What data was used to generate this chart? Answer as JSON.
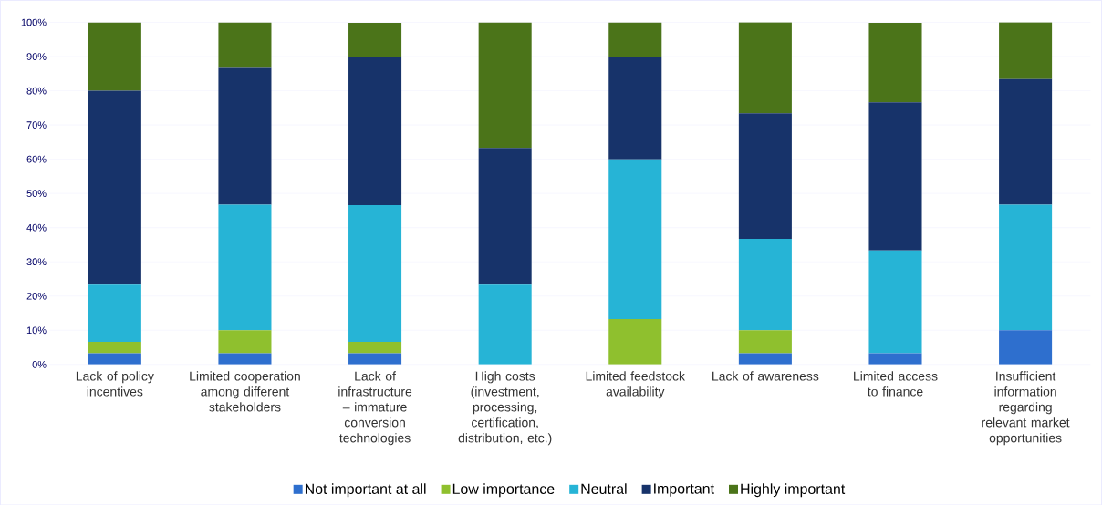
{
  "chart_data": {
    "type": "bar",
    "stacked": true,
    "categories": [
      "Lack of policy incentives",
      "Limited cooperation among different stakeholders",
      "Lack of infrastructure – immature conversion technologies",
      "High costs (investment, processing, certification, distribution, etc.)",
      "Limited feedstock availability",
      "Lack of awareness",
      "Limited access to finance",
      "Insufficient information regarding relevant market opportunities"
    ],
    "series": [
      {
        "name": "Not important at all",
        "color": "#2e6fce",
        "values": [
          3.3,
          3.3,
          3.3,
          0,
          0,
          3.3,
          3.3,
          10
        ]
      },
      {
        "name": "Low importance",
        "color": "#8fc02e",
        "values": [
          3.3,
          6.7,
          3.3,
          0,
          13.3,
          6.7,
          0,
          0
        ]
      },
      {
        "name": "Neutral",
        "color": "#26b4d6",
        "values": [
          16.7,
          36.7,
          40,
          23.3,
          46.7,
          26.7,
          30,
          36.7
        ]
      },
      {
        "name": "Important",
        "color": "#17336a",
        "values": [
          56.7,
          40,
          43.3,
          40,
          30,
          36.7,
          43.3,
          36.7
        ]
      },
      {
        "name": "Highly important",
        "color": "#4b7419",
        "values": [
          20,
          13.3,
          10,
          36.7,
          10,
          26.7,
          23.3,
          16.7
        ]
      }
    ],
    "ylim": [
      0,
      100
    ],
    "yticks": [
      {
        "value": 0,
        "label": "0%"
      },
      {
        "value": 10,
        "label": "10%"
      },
      {
        "value": 20,
        "label": "20%"
      },
      {
        "value": 30,
        "label": "30%"
      },
      {
        "value": 40,
        "label": "40%"
      },
      {
        "value": 50,
        "label": "50%"
      },
      {
        "value": 60,
        "label": "60%"
      },
      {
        "value": 70,
        "label": "70%"
      },
      {
        "value": 80,
        "label": "80%"
      },
      {
        "value": 90,
        "label": "90%"
      },
      {
        "value": 100,
        "label": "100%"
      }
    ],
    "grid": "y",
    "legend": "bottom"
  }
}
